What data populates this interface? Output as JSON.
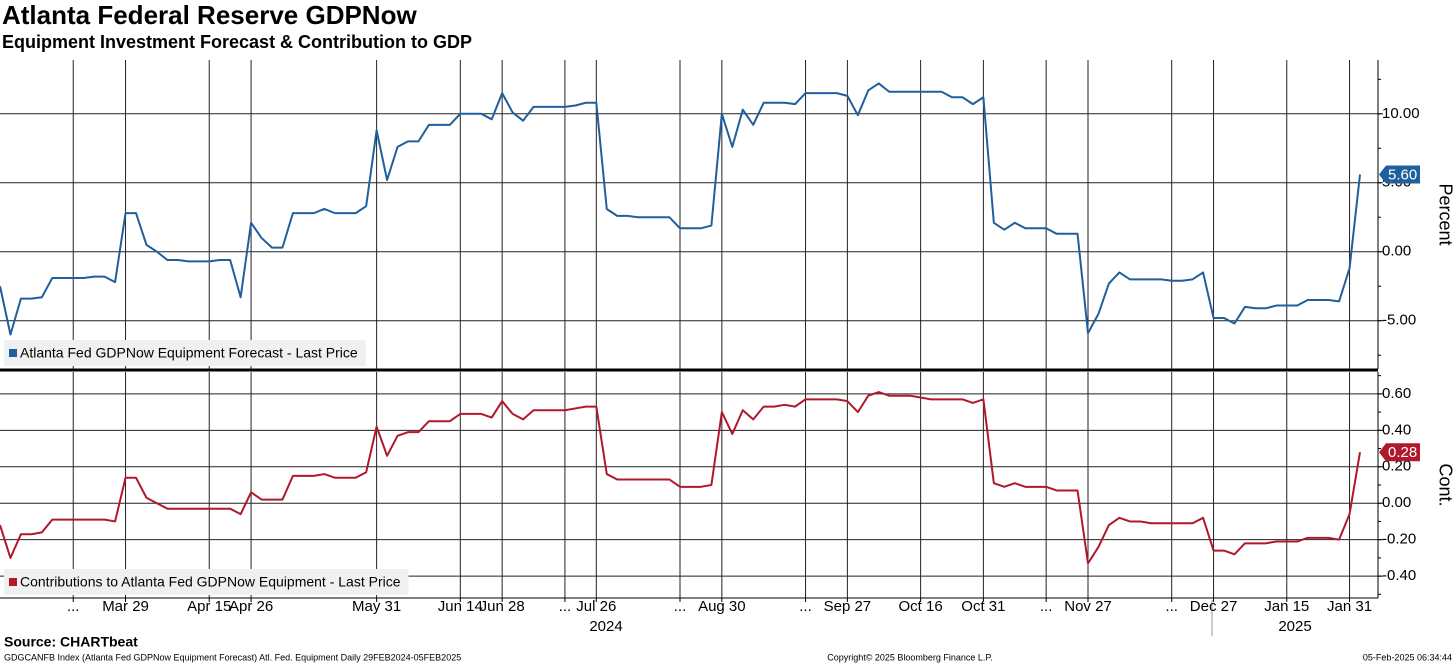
{
  "source": "Source: CHARTbeat",
  "footer": {
    "left": "GDGCANFB Index (Atlanta Fed GDPNow Equipment Forecast) Atl. Fed. Equipment  Daily 29FEB2024-05FEB2025",
    "center": "Copyright© 2025 Bloomberg Finance L.P.",
    "right": "05-Feb-2025 06:34:44"
  },
  "year_labels": [
    "2024",
    "2025"
  ],
  "chart_data": [
    {
      "type": "line",
      "title": "Atlanta Federal Reserve GDPNow",
      "subtitle": "Equipment Investment Forecast & Contribution to GDP",
      "ylabel": "Percent",
      "ylim": [
        -8.5,
        13.9
      ],
      "grid": true,
      "legend": "lower-left",
      "yticks": [
        {
          "value": 10,
          "label": "10.00"
        },
        {
          "value": 5,
          "label": "5.00"
        },
        {
          "value": 0,
          "label": "0.00"
        },
        {
          "value": -5,
          "label": "-5.00"
        }
      ],
      "series": [
        {
          "name": "Atlanta Fed GDPNow Equipment Forecast - Last Price",
          "color": "#1f5f9e",
          "last_value_label": "5.60",
          "values": [
            -2.5,
            -6.0,
            -3.4,
            -3.4,
            -3.3,
            -1.9,
            -1.9,
            -1.9,
            -1.9,
            -1.8,
            -1.8,
            -2.2,
            2.8,
            2.8,
            0.5,
            0,
            -0.6,
            -0.6,
            -0.7,
            -0.7,
            -0.7,
            -0.6,
            -0.6,
            -3.3,
            2.1,
            1.0,
            0.3,
            0.3,
            2.8,
            2.8,
            2.8,
            3.1,
            2.8,
            2.8,
            2.8,
            3.3,
            8.8,
            5.2,
            7.6,
            8.0,
            8.0,
            9.2,
            9.2,
            9.2,
            10.0,
            10.0,
            10.0,
            9.6,
            11.5,
            10.1,
            9.5,
            10.5,
            10.5,
            10.5,
            10.5,
            10.6,
            10.8,
            10.8,
            3.1,
            2.6,
            2.6,
            2.5,
            2.5,
            2.5,
            2.5,
            1.7,
            1.7,
            1.7,
            1.9,
            10.0,
            7.6,
            10.3,
            9.2,
            10.8,
            10.8,
            10.8,
            10.7,
            11.5,
            11.5,
            11.5,
            11.5,
            11.3,
            9.9,
            11.7,
            12.2,
            11.6,
            11.6,
            11.6,
            11.6,
            11.6,
            11.6,
            11.2,
            11.2,
            10.7,
            11.2,
            2.1,
            1.6,
            2.1,
            1.7,
            1.7,
            1.7,
            1.3,
            1.3,
            1.3,
            -5.9,
            -4.5,
            -2.3,
            -1.5,
            -2.0,
            -2.0,
            -2.0,
            -2.0,
            -2.1,
            -2.1,
            -2.0,
            -1.5,
            -4.8,
            -4.8,
            -5.2,
            -4.0,
            -4.1,
            -4.1,
            -3.9,
            -3.9,
            -3.9,
            -3.5,
            -3.5,
            -3.5,
            -3.6,
            -1.2,
            5.6
          ]
        }
      ]
    },
    {
      "type": "line",
      "ylabel": "Cont.",
      "ylim": [
        -0.52,
        0.72
      ],
      "grid": true,
      "legend": "lower-left",
      "yticks": [
        {
          "value": 0.6,
          "label": "0.60"
        },
        {
          "value": 0.4,
          "label": "0.40"
        },
        {
          "value": 0.2,
          "label": "0.20"
        },
        {
          "value": 0,
          "label": "0.00"
        },
        {
          "value": -0.2,
          "label": "-0.20"
        },
        {
          "value": -0.4,
          "label": "-0.40"
        }
      ],
      "categories": [
        null,
        null,
        null,
        null,
        null,
        null,
        null,
        "...",
        null,
        null,
        null,
        null,
        "Mar 29",
        null,
        null,
        null,
        null,
        null,
        null,
        null,
        "Apr 15",
        null,
        null,
        null,
        "Apr 26",
        null,
        null,
        null,
        null,
        null,
        null,
        null,
        null,
        null,
        null,
        null,
        "May 31",
        null,
        null,
        null,
        null,
        null,
        null,
        null,
        "Jun 14",
        null,
        null,
        null,
        "Jun 28",
        null,
        null,
        null,
        null,
        null,
        "...",
        null,
        null,
        "Jul 26",
        null,
        null,
        null,
        null,
        null,
        null,
        null,
        "...",
        null,
        null,
        null,
        "Aug 30",
        null,
        null,
        null,
        null,
        null,
        null,
        null,
        "...",
        null,
        null,
        null,
        "Sep 27",
        null,
        null,
        null,
        null,
        null,
        null,
        "Oct 16",
        null,
        null,
        null,
        null,
        null,
        "Oct 31",
        null,
        null,
        null,
        null,
        null,
        "...",
        null,
        null,
        null,
        "Nov 27",
        null,
        null,
        null,
        null,
        null,
        null,
        null,
        "...",
        null,
        null,
        null,
        "Dec 27",
        null,
        null,
        null,
        null,
        null,
        null,
        "Jan 15",
        null,
        null,
        null,
        null,
        null,
        "Jan 31",
        null
      ],
      "series": [
        {
          "name": "Contributions to Atlanta Fed GDPNow Equipment - Last Price",
          "color": "#b0182c",
          "last_value_label": "0.28",
          "values": [
            -0.12,
            -0.3,
            -0.17,
            -0.17,
            -0.16,
            -0.09,
            -0.09,
            -0.09,
            -0.09,
            -0.09,
            -0.09,
            -0.1,
            0.14,
            0.14,
            0.03,
            0,
            -0.03,
            -0.03,
            -0.03,
            -0.03,
            -0.03,
            -0.03,
            -0.03,
            -0.06,
            0.06,
            0.02,
            0.02,
            0.02,
            0.15,
            0.15,
            0.15,
            0.16,
            0.14,
            0.14,
            0.14,
            0.17,
            0.42,
            0.26,
            0.37,
            0.39,
            0.39,
            0.45,
            0.45,
            0.45,
            0.49,
            0.49,
            0.49,
            0.47,
            0.56,
            0.49,
            0.46,
            0.51,
            0.51,
            0.51,
            0.51,
            0.52,
            0.53,
            0.53,
            0.16,
            0.13,
            0.13,
            0.13,
            0.13,
            0.13,
            0.13,
            0.09,
            0.09,
            0.09,
            0.1,
            0.5,
            0.38,
            0.51,
            0.46,
            0.53,
            0.53,
            0.54,
            0.53,
            0.57,
            0.57,
            0.57,
            0.57,
            0.56,
            0.5,
            0.59,
            0.61,
            0.59,
            0.59,
            0.59,
            0.58,
            0.57,
            0.57,
            0.57,
            0.57,
            0.55,
            0.57,
            0.11,
            0.09,
            0.11,
            0.09,
            0.09,
            0.09,
            0.07,
            0.07,
            0.07,
            -0.33,
            -0.24,
            -0.12,
            -0.08,
            -0.1,
            -0.1,
            -0.11,
            -0.11,
            -0.11,
            -0.11,
            -0.11,
            -0.08,
            -0.26,
            -0.26,
            -0.28,
            -0.22,
            -0.22,
            -0.22,
            -0.21,
            -0.21,
            -0.21,
            -0.19,
            -0.19,
            -0.19,
            -0.2,
            -0.06,
            0.28
          ]
        }
      ]
    }
  ]
}
